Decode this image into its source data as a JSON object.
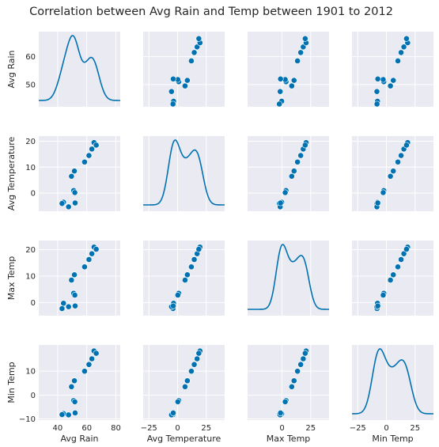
{
  "chart_data": {
    "type": "scatter",
    "title": "Correlation between Avg Rain and Temp between 1901 to 2012",
    "variables": [
      "Avg Rain",
      "Avg Temperature",
      "Max Temp",
      "Min Temp"
    ],
    "style": {
      "background": "#eaeaf2",
      "grid": true,
      "grid_color": "#ffffff",
      "point_color": "#0072b2",
      "line_color": "#0072b2"
    },
    "diagonal": "kde",
    "offdiagonal": "scatter",
    "ranges": {
      "Avg Rain": [
        27,
        83
      ],
      "Avg Temperature": [
        -30,
        41
      ],
      "Max Temp": [
        -30,
        41
      ],
      "Min Temp": [
        -30,
        41
      ]
    },
    "y_ranges": {
      "Avg Rain": [
        42,
        69
      ],
      "Avg Temperature": [
        -7,
        22
      ],
      "Max Temp": [
        -5,
        23.5
      ],
      "Min Temp": [
        -10.5,
        21
      ]
    },
    "x_ticks": {
      "Avg Rain": [
        40,
        60,
        80
      ],
      "Avg Temperature": [
        -25,
        0,
        25
      ],
      "Max Temp": [
        0,
        25
      ],
      "Min Temp": [
        -25,
        0,
        25
      ]
    },
    "y_ticks": {
      "Avg Rain": [
        50,
        60
      ],
      "Avg Temperature": [
        0,
        10,
        20
      ],
      "Max Temp": [
        0,
        10,
        20
      ],
      "Min Temp": [
        -10,
        0,
        10
      ]
    },
    "records": [
      {
        "avg_rain": 44.0,
        "avg_temp": -3.5,
        "max_temp": -0.3,
        "min_temp": -7.8
      },
      {
        "avg_rain": 43.0,
        "avg_temp": -4.0,
        "max_temp": -2.3,
        "min_temp": -8.2
      },
      {
        "avg_rain": 47.5,
        "avg_temp": -5.3,
        "max_temp": -1.6,
        "min_temp": -8.3
      },
      {
        "avg_rain": 51.0,
        "avg_temp": 1.0,
        "max_temp": 3.5,
        "min_temp": -2.3
      },
      {
        "avg_rain": 51.8,
        "avg_temp": 0.2,
        "max_temp": 2.8,
        "min_temp": -2.8
      },
      {
        "avg_rain": 52.0,
        "avg_temp": -3.8,
        "max_temp": -1.3,
        "min_temp": -7.5
      },
      {
        "avg_rain": 49.5,
        "avg_temp": 6.5,
        "max_temp": 8.5,
        "min_temp": 3.5
      },
      {
        "avg_rain": 51.5,
        "avg_temp": 8.5,
        "max_temp": 10.5,
        "min_temp": 6.0
      },
      {
        "avg_rain": 58.5,
        "avg_temp": 12.0,
        "max_temp": 13.5,
        "min_temp": 10.0
      },
      {
        "avg_rain": 61.5,
        "avg_temp": 14.5,
        "max_temp": 16.3,
        "min_temp": 12.8
      },
      {
        "avg_rain": 63.5,
        "avg_temp": 17.0,
        "max_temp": 18.5,
        "min_temp": 15.2
      },
      {
        "avg_rain": 65.0,
        "avg_temp": 19.5,
        "max_temp": 21.0,
        "min_temp": 18.5
      },
      {
        "avg_rain": 66.5,
        "avg_temp": 18.5,
        "max_temp": 20.2,
        "min_temp": 17.5
      }
    ]
  }
}
